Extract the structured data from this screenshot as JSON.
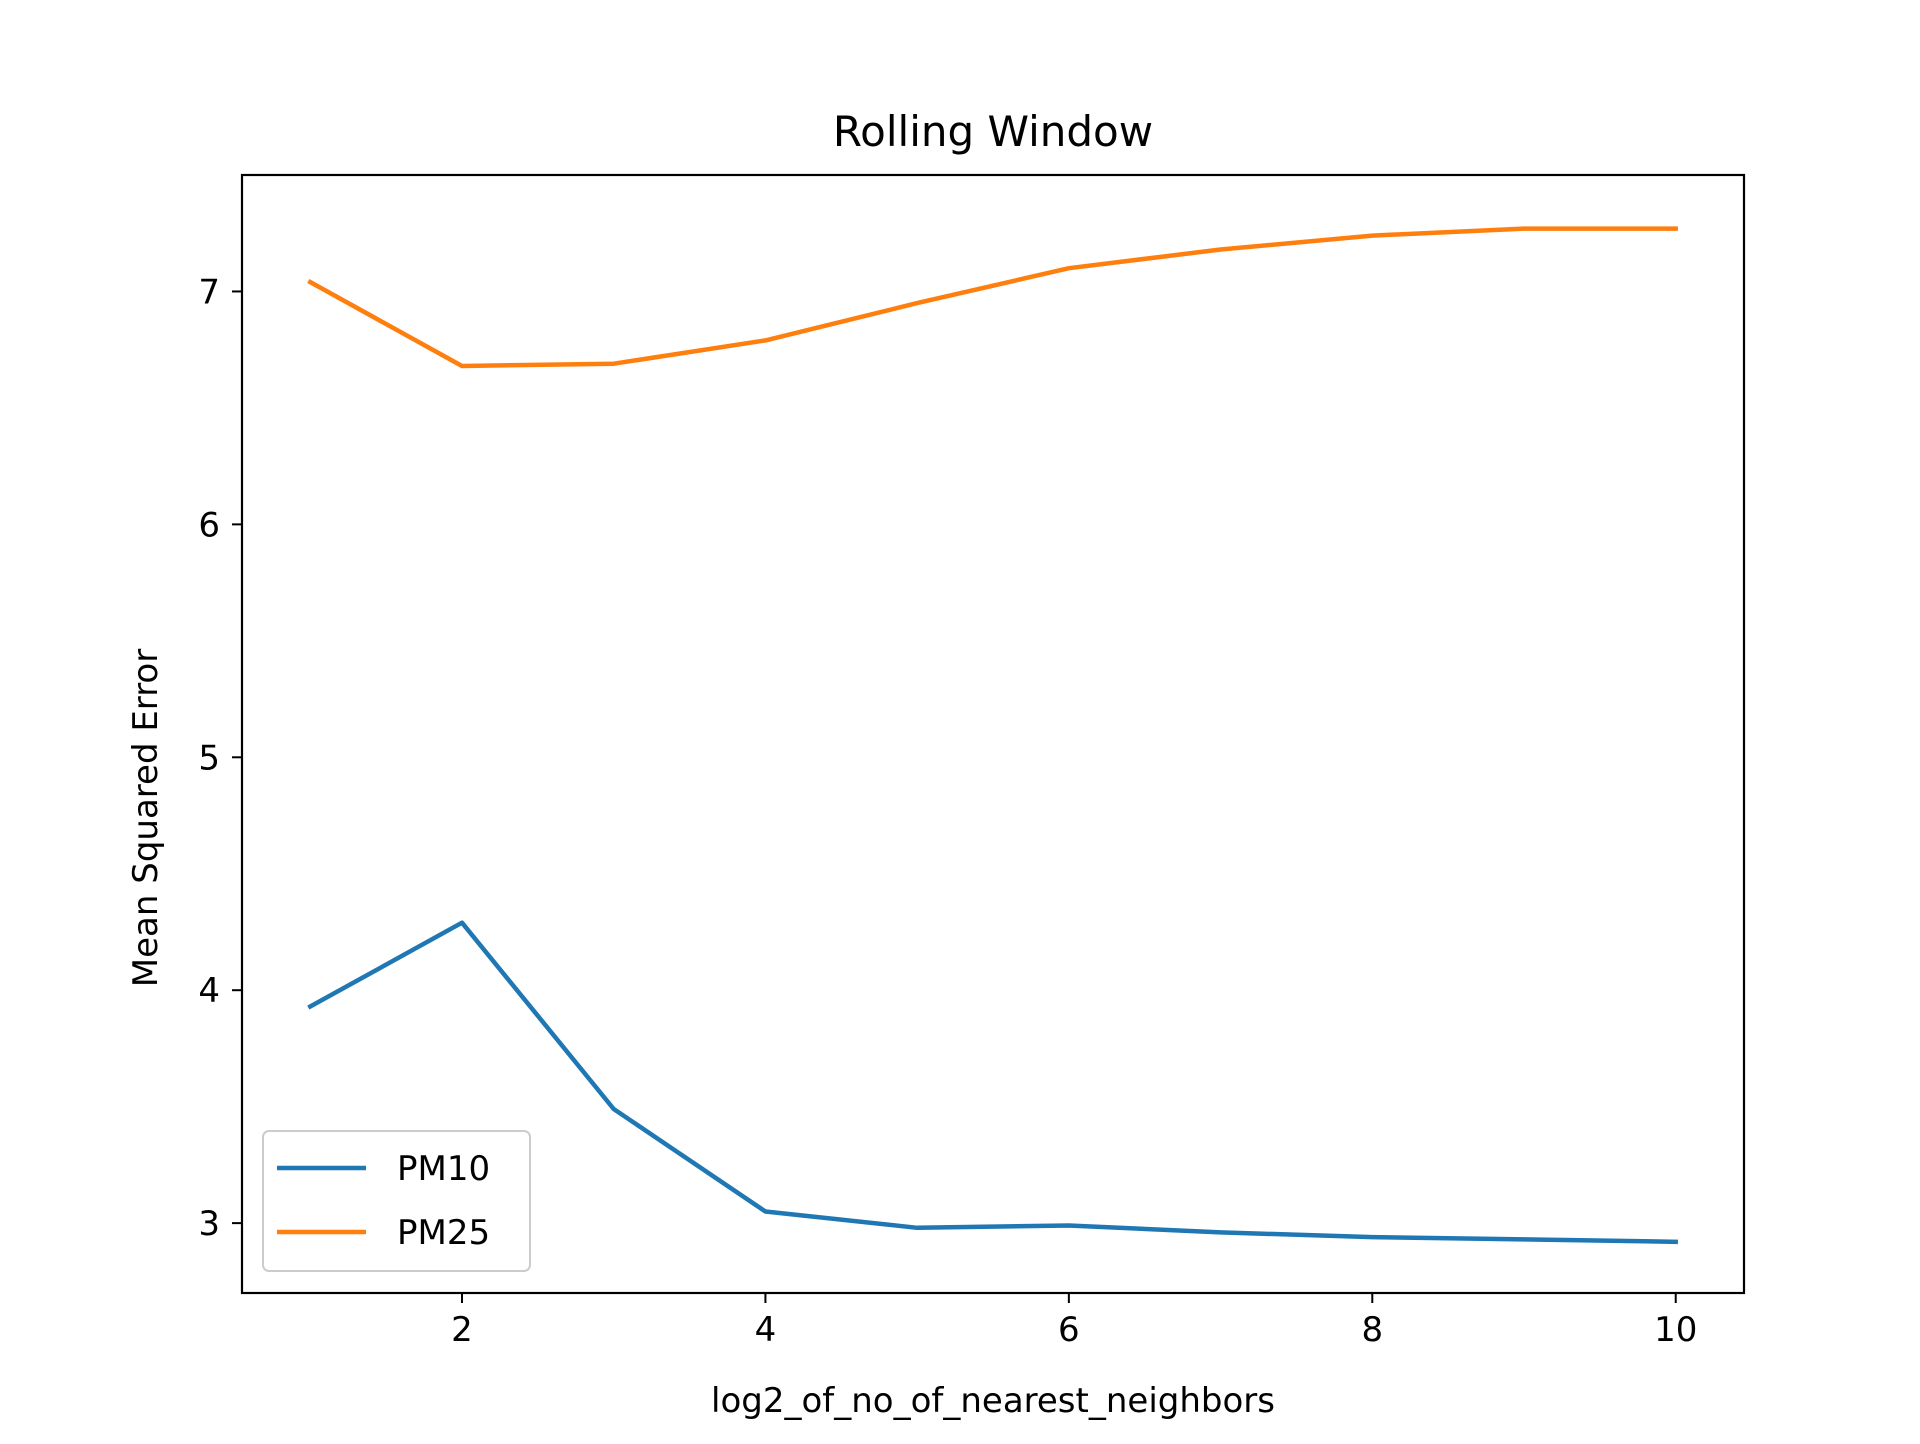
{
  "chart_data": {
    "type": "line",
    "title": "Rolling Window",
    "xlabel": "log2_of_no_of_nearest_neighbors",
    "ylabel": "Mean Squared Error",
    "x": [
      1,
      2,
      3,
      4,
      5,
      6,
      7,
      8,
      9,
      10
    ],
    "xlim": [
      0.55,
      10.45
    ],
    "ylim": [
      2.7,
      7.5
    ],
    "xticks": [
      2,
      4,
      6,
      8,
      10
    ],
    "yticks": [
      3,
      4,
      5,
      6,
      7
    ],
    "grid": false,
    "legend_position": "lower-left",
    "series": [
      {
        "name": "PM10",
        "color": "#1f77b4",
        "values": [
          3.93,
          4.29,
          3.49,
          3.05,
          2.98,
          2.99,
          2.96,
          2.94,
          2.93,
          2.92
        ]
      },
      {
        "name": "PM25",
        "color": "#ff7f0e",
        "values": [
          7.04,
          6.68,
          6.69,
          6.79,
          6.95,
          7.1,
          7.18,
          7.24,
          7.27,
          7.27
        ]
      }
    ]
  }
}
